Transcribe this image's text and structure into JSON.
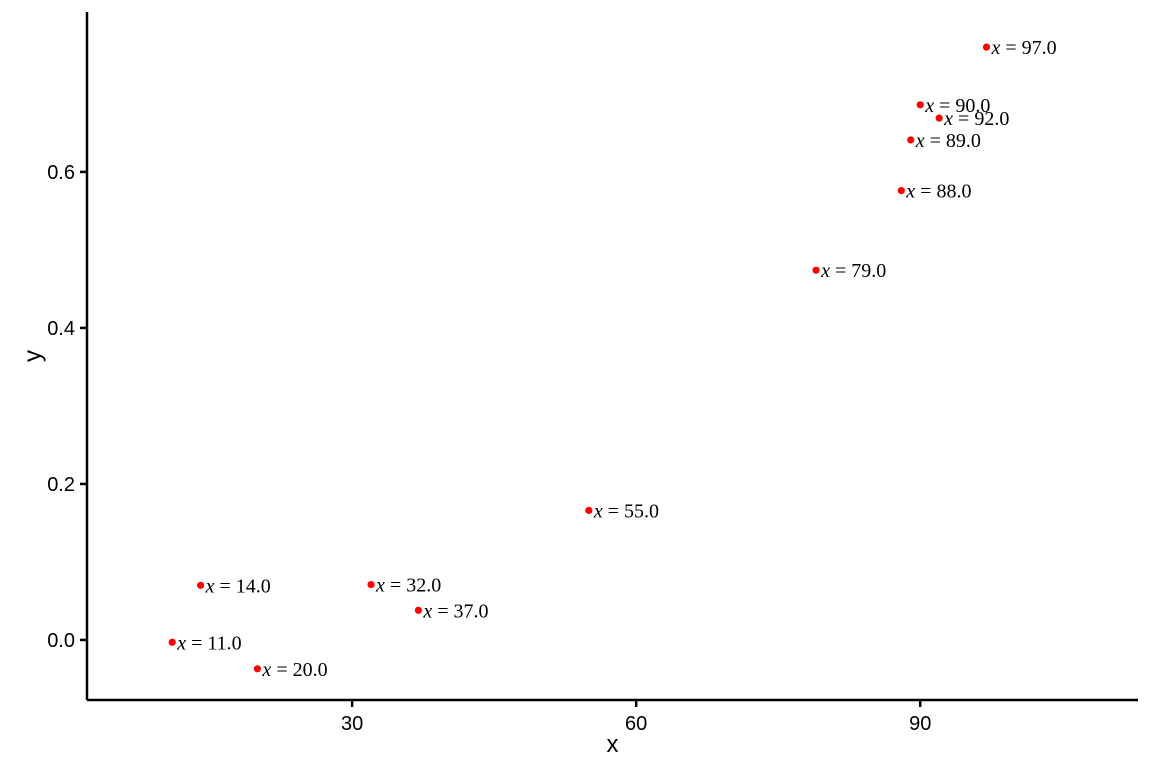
{
  "chart_data": {
    "type": "scatter",
    "title": "",
    "xlabel": "x",
    "ylabel": "y",
    "xlim": [
      2,
      113
    ],
    "ylim": [
      -0.077,
      0.805
    ],
    "xticks": [
      30,
      60,
      90
    ],
    "xtick_labels": [
      "30",
      "60",
      "90"
    ],
    "yticks": [
      0.0,
      0.2,
      0.4,
      0.6
    ],
    "ytick_labels": [
      "0.0",
      "0.2",
      "0.4",
      "0.6"
    ],
    "grid": false,
    "legend": "none",
    "point_color": "#ff0000",
    "label_variable": "x",
    "label_operator": "=",
    "points": [
      {
        "x": 11,
        "y": -0.003,
        "label": "11.0"
      },
      {
        "x": 14,
        "y": 0.07,
        "label": "14.0"
      },
      {
        "x": 20,
        "y": -0.037,
        "label": "20.0"
      },
      {
        "x": 32,
        "y": 0.071,
        "label": "32.0"
      },
      {
        "x": 37,
        "y": 0.038,
        "label": "37.0"
      },
      {
        "x": 55,
        "y": 0.166,
        "label": "55.0"
      },
      {
        "x": 79,
        "y": 0.474,
        "label": "79.0"
      },
      {
        "x": 88,
        "y": 0.576,
        "label": "88.0"
      },
      {
        "x": 89,
        "y": 0.641,
        "label": "89.0"
      },
      {
        "x": 90,
        "y": 0.686,
        "label": "90.0"
      },
      {
        "x": 92,
        "y": 0.669,
        "label": "92.0"
      },
      {
        "x": 97,
        "y": 0.76,
        "label": "97.0"
      }
    ]
  }
}
